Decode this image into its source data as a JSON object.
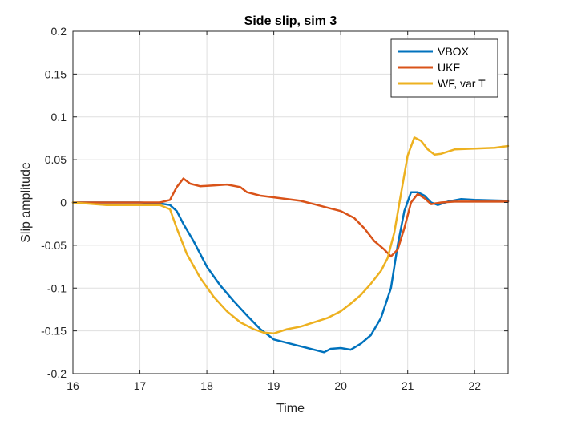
{
  "chart_data": {
    "type": "line",
    "title": "Side slip, sim 3",
    "xlabel": "Time",
    "ylabel": "Slip amplitude",
    "xlim": [
      16,
      22.5
    ],
    "ylim": [
      -0.2,
      0.2
    ],
    "xticks": [
      "16",
      "17",
      "18",
      "19",
      "20",
      "21",
      "22"
    ],
    "xtick_values": [
      16,
      17,
      18,
      19,
      20,
      21,
      22
    ],
    "yticks": [
      "-0.2",
      "-0.15",
      "-0.1",
      "-0.05",
      "0",
      "0.05",
      "0.1",
      "0.15",
      "0.2"
    ],
    "ytick_values": [
      -0.2,
      -0.15,
      -0.1,
      -0.05,
      0,
      0.05,
      0.1,
      0.15,
      0.2
    ],
    "grid": true,
    "legend_position": "top-right",
    "series": [
      {
        "name": "VBOX",
        "color": "#0072BD",
        "points": [
          [
            16.0,
            0.0
          ],
          [
            16.5,
            0.0
          ],
          [
            17.0,
            0.0
          ],
          [
            17.3,
            -0.001
          ],
          [
            17.45,
            -0.003
          ],
          [
            17.55,
            -0.01
          ],
          [
            17.65,
            -0.025
          ],
          [
            17.8,
            -0.045
          ],
          [
            18.0,
            -0.075
          ],
          [
            18.2,
            -0.097
          ],
          [
            18.4,
            -0.115
          ],
          [
            18.6,
            -0.132
          ],
          [
            18.8,
            -0.148
          ],
          [
            19.0,
            -0.16
          ],
          [
            19.2,
            -0.164
          ],
          [
            19.4,
            -0.168
          ],
          [
            19.6,
            -0.172
          ],
          [
            19.75,
            -0.175
          ],
          [
            19.85,
            -0.171
          ],
          [
            20.0,
            -0.17
          ],
          [
            20.15,
            -0.172
          ],
          [
            20.3,
            -0.165
          ],
          [
            20.45,
            -0.155
          ],
          [
            20.6,
            -0.135
          ],
          [
            20.75,
            -0.1
          ],
          [
            20.85,
            -0.05
          ],
          [
            20.95,
            -0.01
          ],
          [
            21.05,
            0.012
          ],
          [
            21.15,
            0.012
          ],
          [
            21.25,
            0.008
          ],
          [
            21.35,
            0.0
          ],
          [
            21.45,
            -0.003
          ],
          [
            21.6,
            0.001
          ],
          [
            21.8,
            0.004
          ],
          [
            22.0,
            0.003
          ],
          [
            22.5,
            0.002
          ]
        ]
      },
      {
        "name": "UKF",
        "color": "#D95319",
        "points": [
          [
            16.0,
            0.0
          ],
          [
            16.5,
            0.0
          ],
          [
            17.0,
            0.0
          ],
          [
            17.3,
            0.0
          ],
          [
            17.45,
            0.003
          ],
          [
            17.55,
            0.018
          ],
          [
            17.65,
            0.028
          ],
          [
            17.75,
            0.022
          ],
          [
            17.9,
            0.019
          ],
          [
            18.1,
            0.02
          ],
          [
            18.3,
            0.021
          ],
          [
            18.5,
            0.018
          ],
          [
            18.6,
            0.012
          ],
          [
            18.8,
            0.008
          ],
          [
            19.0,
            0.006
          ],
          [
            19.2,
            0.004
          ],
          [
            19.4,
            0.002
          ],
          [
            19.6,
            -0.002
          ],
          [
            19.8,
            -0.006
          ],
          [
            20.0,
            -0.01
          ],
          [
            20.2,
            -0.018
          ],
          [
            20.35,
            -0.03
          ],
          [
            20.5,
            -0.045
          ],
          [
            20.65,
            -0.055
          ],
          [
            20.75,
            -0.063
          ],
          [
            20.85,
            -0.055
          ],
          [
            20.95,
            -0.03
          ],
          [
            21.05,
            0.0
          ],
          [
            21.15,
            0.01
          ],
          [
            21.25,
            0.005
          ],
          [
            21.35,
            -0.002
          ],
          [
            21.5,
            0.0
          ],
          [
            21.7,
            0.001
          ],
          [
            22.0,
            0.001
          ],
          [
            22.5,
            0.001
          ]
        ]
      },
      {
        "name": "WF, var T",
        "color": "#EDB120",
        "points": [
          [
            16.0,
            0.0
          ],
          [
            16.5,
            -0.003
          ],
          [
            17.0,
            -0.003
          ],
          [
            17.3,
            -0.003
          ],
          [
            17.45,
            -0.008
          ],
          [
            17.55,
            -0.03
          ],
          [
            17.7,
            -0.06
          ],
          [
            17.9,
            -0.088
          ],
          [
            18.1,
            -0.11
          ],
          [
            18.3,
            -0.127
          ],
          [
            18.5,
            -0.14
          ],
          [
            18.7,
            -0.148
          ],
          [
            18.85,
            -0.152
          ],
          [
            19.0,
            -0.153
          ],
          [
            19.2,
            -0.148
          ],
          [
            19.4,
            -0.145
          ],
          [
            19.6,
            -0.14
          ],
          [
            19.8,
            -0.135
          ],
          [
            20.0,
            -0.127
          ],
          [
            20.15,
            -0.118
          ],
          [
            20.3,
            -0.108
          ],
          [
            20.45,
            -0.095
          ],
          [
            20.6,
            -0.08
          ],
          [
            20.7,
            -0.065
          ],
          [
            20.8,
            -0.035
          ],
          [
            20.9,
            0.01
          ],
          [
            21.0,
            0.055
          ],
          [
            21.1,
            0.076
          ],
          [
            21.2,
            0.072
          ],
          [
            21.3,
            0.062
          ],
          [
            21.4,
            0.056
          ],
          [
            21.5,
            0.057
          ],
          [
            21.7,
            0.062
          ],
          [
            22.0,
            0.063
          ],
          [
            22.3,
            0.064
          ],
          [
            22.5,
            0.066
          ]
        ]
      }
    ]
  }
}
